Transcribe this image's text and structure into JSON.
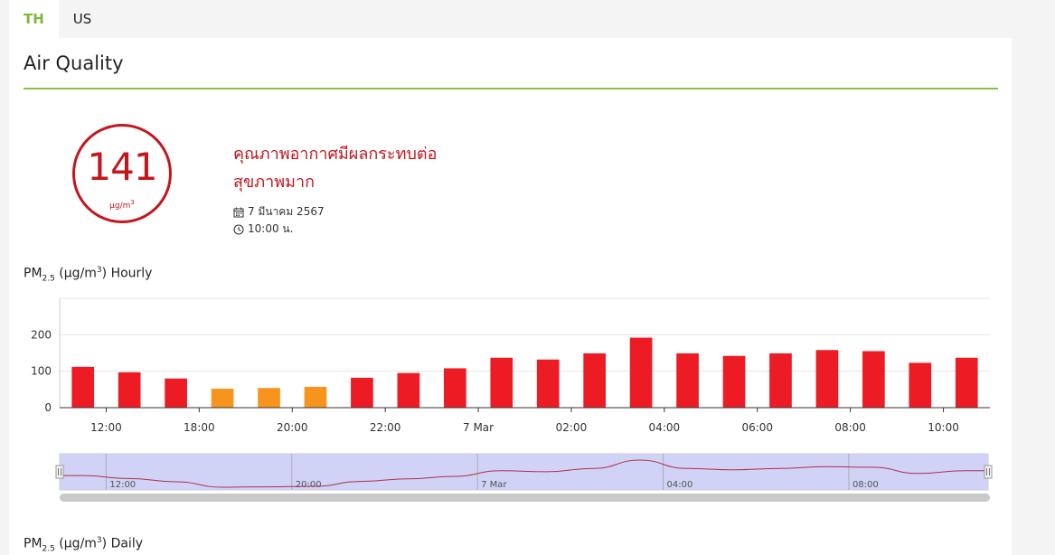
{
  "tabs": [
    {
      "label": "TH",
      "active": true
    },
    {
      "label": "US",
      "active": false
    }
  ],
  "page": {
    "title": "Air Quality"
  },
  "aqi": {
    "value": "141",
    "unit_base": "µg/m",
    "unit_exp": "3",
    "status_line1": "คุณภาพอากาศมีผลกระทบต่อ",
    "status_line2": "สุขภาพมาก",
    "date": "7 มีนาคม 2567",
    "time": "10:00 น.",
    "status_color": "#c4161c"
  },
  "icons": {
    "date": "calendar-icon",
    "time": "clock-icon"
  },
  "hourly_heading": {
    "prefix": "PM",
    "sub": "2.5",
    "unit_open": " (µg/m",
    "unit_exp": "3",
    "suffix": ") Hourly"
  },
  "daily_heading": {
    "prefix": "PM",
    "sub": "2.5",
    "unit_open": " (µg/m",
    "unit_exp": "3",
    "suffix": ") Daily"
  },
  "colors": {
    "accent": "#8cbf3f",
    "tab_active": "#7cb83a",
    "bar_red": "#ed1c24",
    "bar_orange": "#f7941d",
    "navigator_fill": "#c8caf5",
    "navigator_line": "#b0304a"
  },
  "chart_data": {
    "type": "bar",
    "title": "",
    "ylim": [
      0,
      300
    ],
    "yticks": [
      0,
      100,
      200
    ],
    "ytick_labels": [
      "0",
      "100",
      "200"
    ],
    "xtick_labels": [
      "12:00",
      "18:00",
      "20:00",
      "22:00",
      "7 Mar",
      "02:00",
      "04:00",
      "06:00",
      "08:00",
      "10:00"
    ],
    "grid": true,
    "series": [
      {
        "values": [
          112,
          97,
          80,
          52,
          54,
          57,
          82,
          95,
          108,
          137,
          132,
          149,
          192,
          149,
          142,
          149,
          158,
          155,
          123,
          137
        ],
        "colors": [
          "#ed1c24",
          "#ed1c24",
          "#ed1c24",
          "#f7941d",
          "#f7941d",
          "#f7941d",
          "#ed1c24",
          "#ed1c24",
          "#ed1c24",
          "#ed1c24",
          "#ed1c24",
          "#ed1c24",
          "#ed1c24",
          "#ed1c24",
          "#ed1c24",
          "#ed1c24",
          "#ed1c24",
          "#ed1c24",
          "#ed1c24",
          "#ed1c24"
        ]
      }
    ],
    "navigator": {
      "labels": [
        "12:00",
        "20:00",
        "7 Mar",
        "04:00",
        "08:00"
      ]
    }
  }
}
